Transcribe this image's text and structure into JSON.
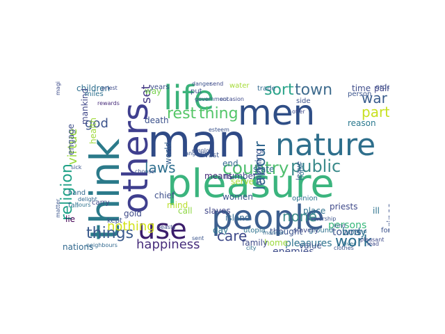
{
  "words": [
    {
      "text": "man",
      "color": "#2f4a86"
    },
    {
      "text": "men",
      "color": "#2f4e86"
    },
    {
      "text": "pleasure",
      "color": "#3bb47e"
    },
    {
      "text": "people",
      "color": "#3d5f8f"
    },
    {
      "text": "think",
      "color": "#2b7a8a"
    },
    {
      "text": "others",
      "color": "#3f3f8e"
    },
    {
      "text": "life",
      "color": "#3bb27a"
    },
    {
      "text": "nature",
      "color": "#2f6f8c"
    },
    {
      "text": "use",
      "color": "#3b1d6b"
    },
    {
      "text": "country",
      "color": "#50bf6f"
    },
    {
      "text": "public",
      "color": "#3a8a8a"
    },
    {
      "text": "labour",
      "color": "#31668e"
    },
    {
      "text": "sort",
      "color": "#2aa48a"
    },
    {
      "text": "town",
      "color": "#3f6c8e"
    },
    {
      "text": "war",
      "color": "#3a5d8d"
    },
    {
      "text": "part",
      "color": "#c7e020"
    },
    {
      "text": "work",
      "color": "#2b6e8e"
    },
    {
      "text": "things",
      "color": "#3a5a8c"
    },
    {
      "text": "religion",
      "color": "#1fa187"
    },
    {
      "text": "utopians",
      "color": "#3a548c"
    },
    {
      "text": "rest",
      "color": "#56c667"
    },
    {
      "text": "thing",
      "color": "#52c569"
    },
    {
      "text": "laws",
      "color": "#2e6f8e"
    },
    {
      "text": "care",
      "color": "#3e4989"
    },
    {
      "text": "none",
      "color": "#3d8b8b"
    },
    {
      "text": "happiness",
      "color": "#472d7b"
    },
    {
      "text": "nothing",
      "color": "#d2e21b"
    },
    {
      "text": "virtue",
      "color": "#9ad93c"
    },
    {
      "text": "god",
      "color": "#3b528b"
    },
    {
      "text": "set",
      "color": "#443983"
    },
    {
      "text": "pleasures",
      "color": "#2c728e"
    },
    {
      "text": "enemies",
      "color": "#3e4c8a"
    },
    {
      "text": "prince",
      "color": "#3b528b"
    },
    {
      "text": "account",
      "color": "#2d708e"
    },
    {
      "text": "persons",
      "color": "#35b779"
    },
    {
      "text": "towns",
      "color": "#3a548c"
    },
    {
      "text": "body",
      "color": "#2c728e"
    },
    {
      "text": "children",
      "color": "#2e6e8e"
    },
    {
      "text": "mankind",
      "color": "#3f4788"
    },
    {
      "text": "health",
      "color": "#9fda3a"
    },
    {
      "text": "way",
      "color": "#7ad151"
    },
    {
      "text": "death",
      "color": "#3b518b"
    },
    {
      "text": "means",
      "color": "#472c7a"
    },
    {
      "text": "mind",
      "color": "#b8de29"
    },
    {
      "text": "slaves",
      "color": "#404688"
    },
    {
      "text": "island",
      "color": "#31688e"
    },
    {
      "text": "day",
      "color": "#2c738e"
    },
    {
      "text": "gold",
      "color": "#3e4a89"
    },
    {
      "text": "chief",
      "color": "#3d4e8a"
    },
    {
      "text": "call",
      "color": "#8fd744"
    },
    {
      "text": "serve",
      "color": "#aadc32"
    },
    {
      "text": "world",
      "color": "#355f8d"
    },
    {
      "text": "number",
      "color": "#3e4989"
    },
    {
      "text": "state",
      "color": "#2f6b8e"
    },
    {
      "text": "women",
      "color": "#3a548c"
    },
    {
      "text": "end",
      "color": "#31688e"
    },
    {
      "text": "anything",
      "color": "#3b528b"
    },
    {
      "text": "reason",
      "color": "#2a788e"
    },
    {
      "text": "place",
      "color": "#2d708e"
    },
    {
      "text": "priests",
      "color": "#3e4989"
    },
    {
      "text": "time",
      "color": "#3e4c8a"
    },
    {
      "text": "pain",
      "color": "#404688"
    },
    {
      "text": "value",
      "color": "#3b528b"
    },
    {
      "text": "nations",
      "color": "#31688e"
    },
    {
      "text": "engage",
      "color": "#3d4e8a"
    },
    {
      "text": "lie",
      "color": "#440154"
    },
    {
      "text": "ill",
      "color": "#2c738e"
    },
    {
      "text": "home",
      "color": "#9bd93c"
    },
    {
      "text": "family",
      "color": "#3e4a89"
    },
    {
      "text": "thought",
      "color": "#3b528b"
    },
    {
      "text": "opinion",
      "color": "#2c738e"
    },
    {
      "text": "order",
      "color": "#3d4e8a"
    },
    {
      "text": "person",
      "color": "#3a548c"
    },
    {
      "text": "ground",
      "color": "#2d708e"
    },
    {
      "text": "force",
      "color": "#3b528b"
    },
    {
      "text": "years",
      "color": "#3d4e8a"
    },
    {
      "text": "put",
      "color": "#3b528b"
    },
    {
      "text": "fall",
      "color": "#2c728e"
    },
    {
      "text": "hand",
      "color": "#31688e"
    },
    {
      "text": "carry",
      "color": "#3e4989"
    },
    {
      "text": "kept",
      "color": "#3b528b"
    },
    {
      "text": "vast",
      "color": "#3a548c"
    },
    {
      "text": "miles",
      "color": "#2d708e"
    },
    {
      "text": "water",
      "color": "#a5db36"
    },
    {
      "text": "utopia",
      "color": "#2c728e"
    },
    {
      "text": "trade",
      "color": "#31688e"
    },
    {
      "text": "side",
      "color": "#3b528b"
    },
    {
      "text": "slavery",
      "color": "#3e4989"
    },
    {
      "text": "leave",
      "color": "#3a548c"
    },
    {
      "text": "hope",
      "color": "#2d708e"
    },
    {
      "text": "magistrates",
      "color": "#3e4c8a"
    },
    {
      "text": "matter",
      "color": "#3a548c"
    },
    {
      "text": "government",
      "color": "#3b528b"
    },
    {
      "text": "occasion",
      "color": "#3e4989"
    },
    {
      "text": "manner",
      "color": "#31688e"
    },
    {
      "text": "pleasant",
      "color": "#3e4989"
    },
    {
      "text": "worship",
      "color": "#3b528b"
    },
    {
      "text": "clothes",
      "color": "#3a548c"
    },
    {
      "text": "city",
      "color": "#2d708e"
    },
    {
      "text": "beasts",
      "color": "#3e4c8a"
    },
    {
      "text": "neighbours",
      "color": "#31688e"
    },
    {
      "text": "choose",
      "color": "#3b528b"
    },
    {
      "text": "language",
      "color": "#3a548c"
    },
    {
      "text": "rewards",
      "color": "#472c7a"
    },
    {
      "text": "offer",
      "color": "#3e4989"
    },
    {
      "text": "hours",
      "color": "#2c728e"
    },
    {
      "text": "employ",
      "color": "#3b528b"
    },
    {
      "text": "sick",
      "color": "#3a548c"
    },
    {
      "text": "delight",
      "color": "#31688e"
    },
    {
      "text": "priest",
      "color": "#3e4c8a"
    },
    {
      "text": "danger",
      "color": "#3b528b"
    },
    {
      "text": "send",
      "color": "#3e4989"
    },
    {
      "text": "lives",
      "color": "#2d708e"
    },
    {
      "text": "esteem",
      "color": "#3b528b"
    },
    {
      "text": "sent",
      "color": "#3a548c"
    },
    {
      "text": "land",
      "color": "#31688e"
    },
    {
      "text": "lead",
      "color": "#3e4989"
    },
    {
      "text": "manage",
      "color": "#3b528b"
    },
    {
      "text": "kind",
      "color": "#3a548c"
    }
  ]
}
